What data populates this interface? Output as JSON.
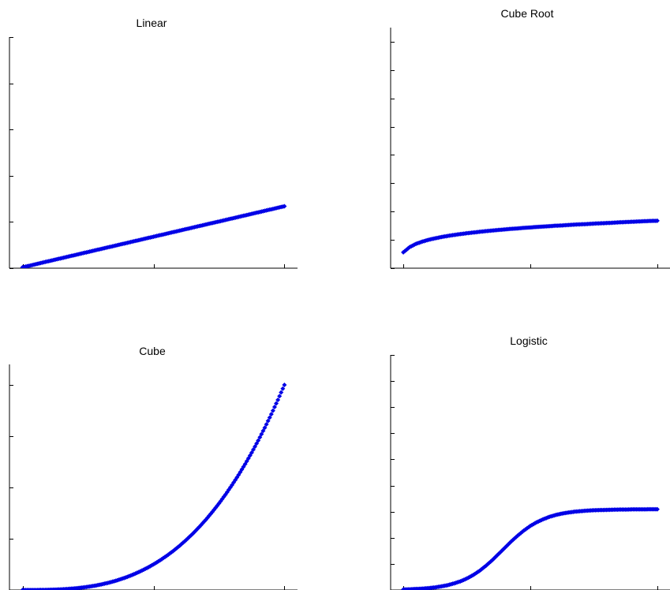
{
  "colors": {
    "points": "#0000e6",
    "axes": "#000000"
  },
  "chart_data": [
    {
      "type": "scatter",
      "title": "Linear",
      "function": "linear",
      "x": [
        0,
        0.25,
        0.5,
        0.75,
        1,
        1.25,
        1.5,
        1.75,
        2,
        2.25,
        2.5,
        2.75,
        3,
        3.25,
        3.5,
        3.75,
        4,
        4.25,
        4.5,
        4.75,
        5,
        5.25,
        5.5,
        5.75,
        6,
        6.25,
        6.5,
        6.75,
        7,
        7.25,
        7.5,
        7.75,
        8,
        8.25,
        8.5,
        8.75,
        9,
        9.25,
        9.5,
        9.75,
        10
      ],
      "y": [
        0.1,
        0.26,
        0.43,
        0.6,
        0.76,
        0.93,
        1.09,
        1.26,
        1.42,
        1.59,
        1.75,
        1.92,
        2.08,
        2.25,
        2.41,
        2.58,
        2.74,
        2.91,
        3.07,
        3.24,
        3.4,
        3.57,
        3.73,
        3.9,
        4.06,
        4.23,
        4.39,
        4.56,
        4.72,
        4.89,
        5.05,
        5.22,
        5.38,
        5.55,
        5.71,
        5.88,
        6.04,
        6.21,
        6.37,
        6.54,
        6.7
      ],
      "xlim": [
        -0.5,
        10.5
      ],
      "ylim": [
        0,
        25
      ],
      "xticks": [
        0,
        5,
        10
      ],
      "yticks": [
        0,
        5,
        10,
        15,
        20,
        25
      ],
      "xlabel": "",
      "ylabel": "",
      "grid": false
    },
    {
      "type": "scatter",
      "title": "Cube Root",
      "function": "cube-root",
      "x": [
        0,
        0.25,
        0.5,
        0.75,
        1,
        1.25,
        1.5,
        1.75,
        2,
        2.25,
        2.5,
        2.75,
        3,
        3.25,
        3.5,
        3.75,
        4,
        4.25,
        4.5,
        4.75,
        5,
        5.25,
        5.5,
        5.75,
        6,
        6.25,
        6.5,
        6.75,
        7,
        7.25,
        7.5,
        7.75,
        8,
        8.25,
        8.5,
        8.75,
        9,
        9.25,
        9.5,
        9.75,
        10
      ],
      "y": [
        1.12,
        1.49,
        1.72,
        1.88,
        2.01,
        2.11,
        2.2,
        2.28,
        2.35,
        2.41,
        2.47,
        2.52,
        2.57,
        2.62,
        2.66,
        2.7,
        2.74,
        2.78,
        2.81,
        2.85,
        2.88,
        2.91,
        2.94,
        2.97,
        3,
        3.02,
        3.05,
        3.08,
        3.1,
        3.12,
        3.15,
        3.17,
        3.19,
        3.21,
        3.24,
        3.26,
        3.28,
        3.3,
        3.32,
        3.34,
        3.35
      ],
      "xlim": [
        -0.5,
        10.5
      ],
      "ylim": [
        0,
        17
      ],
      "xticks": [
        0,
        5,
        10
      ],
      "yticks": [
        0,
        2,
        4,
        6,
        8,
        10,
        12,
        14,
        16
      ],
      "xlabel": "",
      "ylabel": "",
      "grid": false
    },
    {
      "type": "scatter",
      "title": "Cube",
      "function": "cube",
      "x": [
        0,
        0.25,
        0.5,
        0.75,
        1,
        1.25,
        1.5,
        1.75,
        2,
        2.25,
        2.5,
        2.75,
        3,
        3.25,
        3.5,
        3.75,
        4,
        4.25,
        4.5,
        4.75,
        5,
        5.25,
        5.5,
        5.75,
        6,
        6.25,
        6.5,
        6.75,
        7,
        7.25,
        7.5,
        7.75,
        8,
        8.25,
        8.5,
        8.75,
        9,
        9.25,
        9.5,
        9.75,
        10
      ],
      "y": [
        0,
        0.016,
        0.13,
        0.42,
        1,
        1.95,
        3.38,
        5.36,
        8,
        11.39,
        15.63,
        20.8,
        27,
        34.33,
        42.88,
        52.73,
        64,
        76.77,
        91.13,
        107.17,
        125,
        144.7,
        166.38,
        190.11,
        216,
        244.14,
        274.63,
        307.55,
        343,
        381.08,
        421.88,
        465.48,
        512,
        561.52,
        614.13,
        669.92,
        729,
        791.45,
        857.38,
        926.86,
        1000
      ],
      "xlim": [
        -0.5,
        10.5
      ],
      "ylim": [
        0,
        1100
      ],
      "xticks": [
        0,
        5,
        10
      ],
      "yticks": [
        0,
        250,
        500,
        750,
        1000
      ],
      "xlabel": "",
      "ylabel": "",
      "grid": false
    },
    {
      "type": "scatter",
      "title": "Logistic",
      "function": "logistic",
      "x": [
        0,
        0.25,
        0.5,
        0.75,
        1,
        1.25,
        1.5,
        1.75,
        2,
        2.25,
        2.5,
        2.75,
        3,
        3.25,
        3.5,
        3.75,
        4,
        4.25,
        4.5,
        4.75,
        5,
        5.25,
        5.5,
        5.75,
        6,
        6.25,
        6.5,
        6.75,
        7,
        7.25,
        7.5,
        7.75,
        8,
        8.25,
        8.5,
        8.75,
        9,
        9.25,
        9.5,
        9.75,
        10
      ],
      "y": [
        0.03,
        0.04,
        0.06,
        0.08,
        0.11,
        0.15,
        0.21,
        0.28,
        0.38,
        0.5,
        0.66,
        0.86,
        1.1,
        1.39,
        1.71,
        2.07,
        2.43,
        2.79,
        3.12,
        3.42,
        3.68,
        3.89,
        4.06,
        4.2,
        4.31,
        4.39,
        4.45,
        4.5,
        4.53,
        4.56,
        4.58,
        4.59,
        4.6,
        4.61,
        4.62,
        4.62,
        4.63,
        4.63,
        4.63,
        4.64,
        4.64
      ],
      "xlim": [
        -0.5,
        10.5
      ],
      "ylim": [
        0,
        13.5
      ],
      "xticks": [
        0,
        5,
        10
      ],
      "yticks": [
        0,
        1.5,
        3,
        4.5,
        6,
        7.5,
        9,
        10.5,
        12,
        13.5
      ],
      "xlabel": "",
      "ylabel": "",
      "grid": false
    }
  ]
}
